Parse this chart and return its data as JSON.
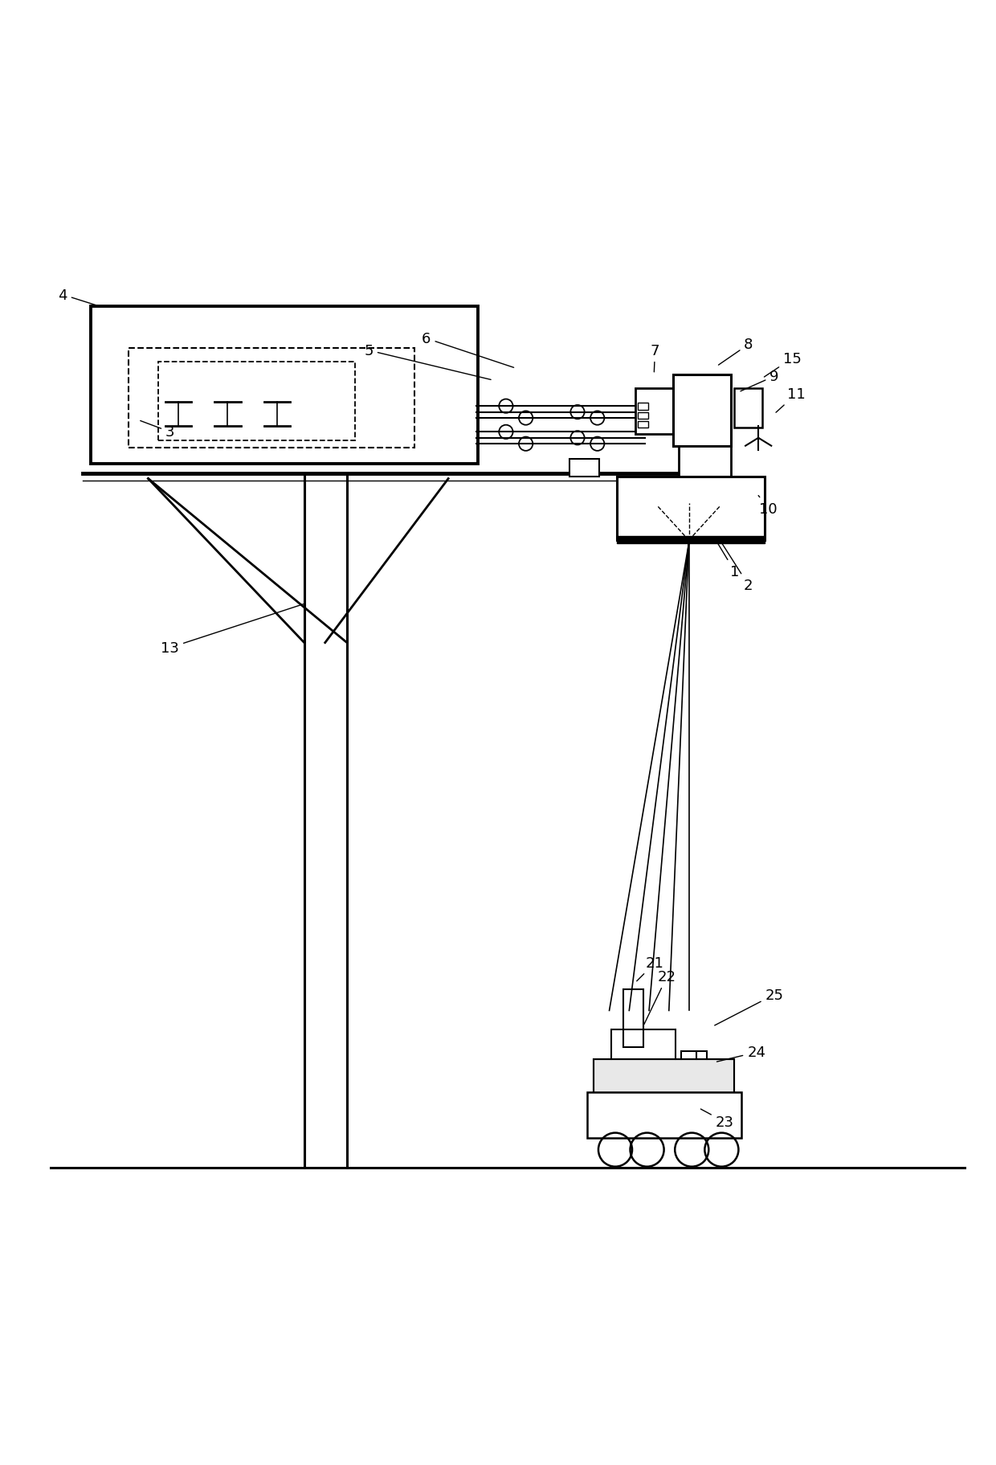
{
  "bg_color": "#ffffff",
  "line_color": "#000000",
  "figsize": [
    12.4,
    18.24
  ],
  "dpi": 100,
  "label_fontsize": 13
}
